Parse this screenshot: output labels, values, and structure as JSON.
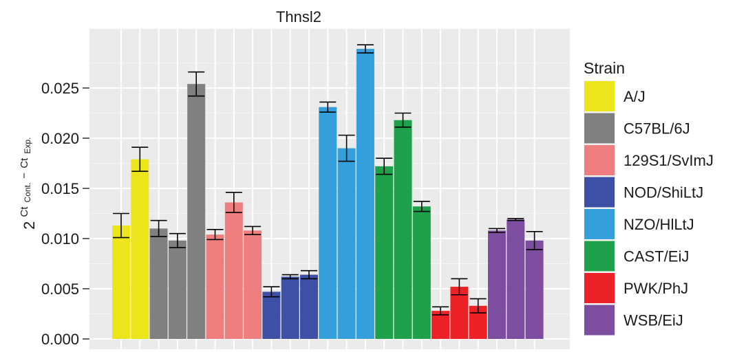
{
  "chart_data": {
    "type": "bar",
    "title": "Thnsl2",
    "ylabel": {
      "base": "2",
      "term1": "Ct",
      "term1_sub": "Cont.",
      "minus": "−",
      "term2": "Ct",
      "term2_sub": "Exp."
    },
    "ylim": [
      0,
      0.0295
    ],
    "yticks": [
      "0.000",
      "0.005",
      "0.010",
      "0.015",
      "0.020",
      "0.025"
    ],
    "ytick_values": [
      0,
      0.005,
      0.01,
      0.015,
      0.02,
      0.025
    ],
    "grid": true,
    "legend": {
      "title": "Strain",
      "position": "right",
      "entries": [
        {
          "label": "A/J",
          "color": "#ECE51C"
        },
        {
          "label": "C57BL/6J",
          "color": "#808080"
        },
        {
          "label": "129S1/SvImJ",
          "color": "#EF7F7F"
        },
        {
          "label": "NOD/ShiLtJ",
          "color": "#3D50A5"
        },
        {
          "label": "NZO/HlLtJ",
          "color": "#349FDB"
        },
        {
          "label": "CAST/EiJ",
          "color": "#1FA04B"
        },
        {
          "label": "PWK/PhJ",
          "color": "#EC2227"
        },
        {
          "label": "WSB/EiJ",
          "color": "#7D4EA0"
        }
      ]
    },
    "series": [
      {
        "strain_index": 0,
        "values": [
          0.0113,
          0.0179
        ],
        "errors": [
          0.0012,
          0.0012
        ]
      },
      {
        "strain_index": 1,
        "values": [
          0.011,
          0.0098,
          0.0254
        ],
        "errors": [
          0.0008,
          0.0007,
          0.0012
        ]
      },
      {
        "strain_index": 2,
        "values": [
          0.0104,
          0.0136,
          0.0108
        ],
        "errors": [
          0.0005,
          0.001,
          0.0004
        ]
      },
      {
        "strain_index": 3,
        "values": [
          0.0047,
          0.0062,
          0.0064
        ],
        "errors": [
          0.0005,
          0.0002,
          0.0004
        ]
      },
      {
        "strain_index": 4,
        "values": [
          0.0231,
          0.019,
          0.0289
        ],
        "errors": [
          0.0005,
          0.0013,
          0.0004
        ]
      },
      {
        "strain_index": 5,
        "values": [
          0.0172,
          0.0218,
          0.0132
        ],
        "errors": [
          0.0008,
          0.0007,
          0.0005
        ]
      },
      {
        "strain_index": 6,
        "values": [
          0.0028,
          0.0052,
          0.0033
        ],
        "errors": [
          0.0004,
          0.0008,
          0.0007
        ]
      },
      {
        "strain_index": 7,
        "values": [
          0.0108,
          0.0119,
          0.0098
        ],
        "errors": [
          0.0002,
          0.0001,
          0.0009
        ]
      }
    ]
  }
}
